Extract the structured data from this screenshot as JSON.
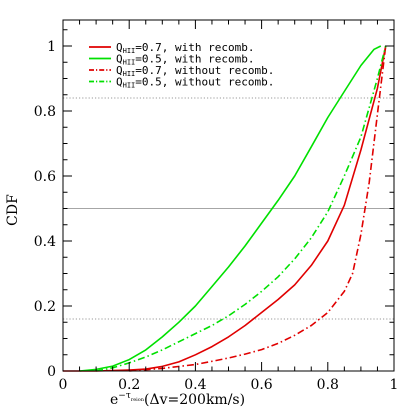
{
  "chart_data": {
    "type": "line",
    "title": "",
    "xlabel": {
      "prefix": "e",
      "exp_base": "−τ",
      "exp_sub": "reion",
      "suffix": "(Δv=200km/s)"
    },
    "ylabel": "CDF",
    "xlim": [
      0,
      1
    ],
    "ylim": [
      0,
      1.08
    ],
    "xticks": [
      "0",
      "0.2",
      "0.4",
      "0.6",
      "0.8",
      "1"
    ],
    "yticks": [
      "0",
      "0.2",
      "0.4",
      "0.6",
      "0.8",
      "1"
    ],
    "xtick_values": [
      0,
      0.2,
      0.4,
      0.6,
      0.8,
      1
    ],
    "ytick_values": [
      0,
      0.2,
      0.4,
      0.6,
      0.8,
      1
    ],
    "reference_lines": [
      {
        "y": 0.84,
        "style": "dotted"
      },
      {
        "y": 0.5,
        "style": "solid"
      },
      {
        "y": 0.16,
        "style": "dotted"
      }
    ],
    "legend_position": "top-right",
    "series": [
      {
        "name": "Q_HII=0.7, with recomb.",
        "label_main": "Q",
        "label_sub": "HII",
        "label_rest": "=0.7, with recomb.",
        "color": "#e00000",
        "dash": "solid",
        "x": [
          0.0,
          0.1,
          0.2,
          0.25,
          0.3,
          0.35,
          0.4,
          0.45,
          0.5,
          0.55,
          0.6,
          0.65,
          0.7,
          0.75,
          0.8,
          0.85,
          0.9,
          0.95,
          0.975
        ],
        "y": [
          0.0,
          0.0,
          0.003,
          0.006,
          0.014,
          0.028,
          0.05,
          0.075,
          0.105,
          0.14,
          0.18,
          0.22,
          0.265,
          0.325,
          0.4,
          0.51,
          0.68,
          0.87,
          1.0
        ]
      },
      {
        "name": "Q_HII=0.5, with recomb.",
        "label_main": "Q",
        "label_sub": "HII",
        "label_rest": "=0.5, with recomb.",
        "color": "#00e000",
        "dash": "solid",
        "x": [
          0.05,
          0.1,
          0.15,
          0.2,
          0.25,
          0.3,
          0.35,
          0.4,
          0.45,
          0.5,
          0.55,
          0.6,
          0.65,
          0.7,
          0.75,
          0.8,
          0.85,
          0.9,
          0.94,
          0.96
        ],
        "y": [
          0.0,
          0.005,
          0.015,
          0.035,
          0.065,
          0.105,
          0.15,
          0.2,
          0.26,
          0.32,
          0.385,
          0.455,
          0.525,
          0.6,
          0.69,
          0.78,
          0.86,
          0.94,
          0.99,
          1.0
        ]
      },
      {
        "name": "Q_HII=0.7, without recomb.",
        "label_main": "Q",
        "label_sub": "HII",
        "label_rest": "=0.7, without recomb.",
        "color": "#e00000",
        "dash": "dashdot",
        "x": [
          0.2,
          0.3,
          0.4,
          0.45,
          0.5,
          0.55,
          0.6,
          0.65,
          0.7,
          0.75,
          0.8,
          0.85,
          0.875,
          0.9,
          0.925,
          0.95,
          0.975
        ],
        "y": [
          0.0,
          0.008,
          0.02,
          0.03,
          0.04,
          0.052,
          0.066,
          0.085,
          0.11,
          0.14,
          0.18,
          0.245,
          0.3,
          0.42,
          0.58,
          0.79,
          1.0
        ]
      },
      {
        "name": "Q_HII=0.5, without recomb.",
        "label_main": "Q",
        "label_sub": "HII",
        "label_rest": "=0.5, without recomb.",
        "color": "#00e000",
        "dash": "dashdot",
        "x": [
          0.1,
          0.15,
          0.2,
          0.25,
          0.3,
          0.35,
          0.4,
          0.45,
          0.5,
          0.55,
          0.6,
          0.65,
          0.7,
          0.75,
          0.8,
          0.85,
          0.9,
          0.95,
          0.975
        ],
        "y": [
          0.0,
          0.01,
          0.025,
          0.043,
          0.065,
          0.09,
          0.115,
          0.14,
          0.17,
          0.205,
          0.245,
          0.29,
          0.345,
          0.41,
          0.49,
          0.6,
          0.72,
          0.9,
          1.0
        ]
      }
    ]
  }
}
